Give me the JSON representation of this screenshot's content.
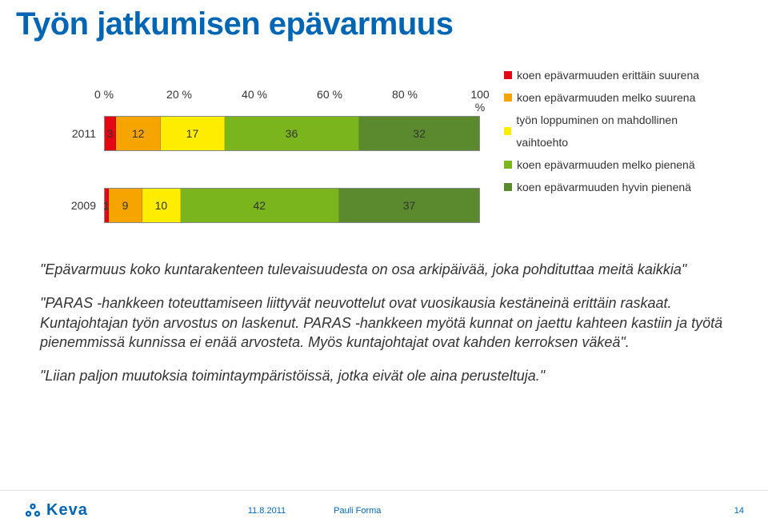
{
  "title": "Työn jatkumisen epävarmuus",
  "chart": {
    "type": "stacked-bar-horizontal",
    "xlim": [
      0,
      100
    ],
    "xtick_step": 20,
    "xtick_labels": [
      "0 %",
      "20 %",
      "40 %",
      "60 %",
      "80 %",
      "100 %"
    ],
    "categories": [
      "2011",
      "2009"
    ],
    "series": [
      {
        "name": "koen epävarmuuden erittäin suurena",
        "color": "#e30613"
      },
      {
        "name": "koen epävarmuuden melko suurena",
        "color": "#f6a500"
      },
      {
        "name": "työn loppuminen on mahdollinen vaihtoehto",
        "color": "#ffed00"
      },
      {
        "name": "koen epävarmuuden melko pienenä",
        "color": "#7ab51d"
      },
      {
        "name": "koen epävarmuuden hyvin pienenä",
        "color": "#5a8a2d"
      }
    ],
    "rows": [
      {
        "label": "2011",
        "values": [
          3,
          12,
          17,
          36,
          32
        ]
      },
      {
        "label": "2009",
        "values": [
          1,
          9,
          10,
          42,
          37
        ]
      }
    ],
    "label_fontsize": 14,
    "grid_color": "#d0d0d0",
    "background": "#ffffff"
  },
  "quotes": {
    "q1_pre": "\"Epävarmuus koko kuntarakenteen tulevaisuudesta on osa arkipäivää, joka pohdituttaa meitä kaikkia\"",
    "q2": "\"PARAS -hankkeen toteuttamiseen liittyvät neuvottelut ovat vuosikausia kestäneinä erittäin raskaat. Kuntajohtajan työn arvostus on laskenut. PARAS -hankkeen myötä kunnat on jaettu kahteen kastiin ja työtä pienemmissä kunnissa ei enää arvosteta. Myös kuntajohtajat ovat kahden kerroksen väkeä\".",
    "q3": "\"Liian paljon muutoksia toimintaympäristöissä, jotka eivät ole aina perusteltuja.\""
  },
  "footer": {
    "brand": "Keva",
    "date": "11.8.2011",
    "author": "Pauli Forma",
    "page": "14",
    "brand_color": "#0066b3"
  }
}
